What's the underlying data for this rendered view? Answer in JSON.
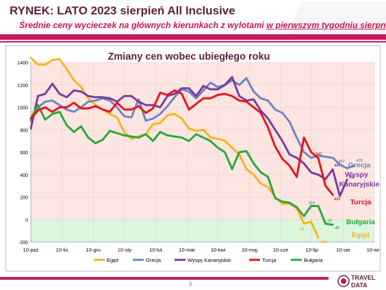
{
  "header": {
    "title": "RYNEK: LATO 2023 sierpień All Inclusive",
    "subtitle_part1": "Średnie ceny wycieczek na głównych kierunkach z wylotami ",
    "subtitle_underlined": "w pierwszym tygodniu sierpnia"
  },
  "footer": {
    "page_number": "9",
    "logo_text_top": "TRAVEL",
    "logo_text_bottom": "DATA"
  },
  "colors": {
    "Egipt": "#f5b51e",
    "Grecja": "#6b86bf",
    "Wyspy Kanaryjskie": "#7a3b9c",
    "Turcja": "#e8141e",
    "Bułgaria": "#2aa83a",
    "positive_bg": "#fde5e2",
    "negative_bg": "#dcf5dd",
    "title_color": "#5f1e3c",
    "accent": "#c8175d"
  },
  "chart_data": {
    "type": "line",
    "title": "Zmiany cen wobec ubiegłego roku",
    "xlabel": "",
    "ylabel": "",
    "ylim": [
      -200,
      1400
    ],
    "yticks": [
      -200,
      0,
      200,
      400,
      600,
      800,
      1000,
      1200,
      1400
    ],
    "x_tick_labels": [
      "10-paź",
      "10-lis",
      "10-gru",
      "10-sty",
      "10-lut",
      "10-mar",
      "10-kwi",
      "10-maj",
      "10-cze",
      "10-lip",
      "10-sie",
      "10-wrz"
    ],
    "grid": true,
    "legend_position": "bottom",
    "series": [
      {
        "name": "Egipt",
        "values": [
          1440,
          1380,
          1380,
          1420,
          1430,
          1340,
          1240,
          1180,
          1080,
          1020,
          980,
          940,
          910,
          780,
          720,
          740,
          760,
          850,
          860,
          930,
          940,
          900,
          810,
          790,
          800,
          730,
          720,
          700,
          640,
          580,
          450,
          400,
          320,
          290,
          200,
          140,
          140,
          100,
          -35,
          -20,
          -161
        ]
      },
      {
        "name": "Grecja",
        "values": [
          880,
          1000,
          1050,
          1060,
          1020,
          980,
          960,
          1000,
          1050,
          1060,
          1080,
          1060,
          1000,
          920,
          910,
          1070,
          880,
          900,
          940,
          1010,
          1090,
          1160,
          1140,
          1080,
          1150,
          1220,
          1180,
          1200,
          1240,
          1200,
          1260,
          1140,
          1080,
          1060,
          980,
          950,
          870,
          730,
          600,
          550,
          570,
          560,
          550,
          490,
          457,
          479
        ]
      },
      {
        "name": "Wyspy Kanaryjskie",
        "values": [
          810,
          1100,
          1120,
          1210,
          1120,
          1090,
          1150,
          1140,
          1100,
          1090,
          1090,
          1080,
          1050,
          1100,
          1100,
          1050,
          1020,
          1020,
          1000,
          1100,
          1120,
          1170,
          1170,
          1100,
          1190,
          1160,
          1160,
          1200,
          1270,
          1100,
          1060,
          1070,
          970,
          900,
          800,
          700,
          580,
          550,
          500,
          420,
          400,
          360,
          447,
          210,
          355
        ]
      },
      {
        "name": "Turcja",
        "values": [
          900,
          970,
          1000,
          960,
          1000,
          1000,
          1040,
          990,
          990,
          1010,
          980,
          960,
          1040,
          980,
          980,
          1010,
          950,
          990,
          1130,
          1110,
          1150,
          1120,
          980,
          1030,
          1080,
          1080,
          1110,
          1120,
          1100,
          1060,
          1050,
          1000,
          950,
          820,
          650,
          540,
          480,
          380,
          730,
          600,
          547,
          300,
          221
        ]
      },
      {
        "name": "Bułgaria",
        "values": [
          900,
          1020,
          890,
          940,
          960,
          840,
          780,
          830,
          730,
          680,
          710,
          790,
          770,
          750,
          740,
          730,
          760,
          700,
          780,
          750,
          740,
          730,
          700,
          760,
          730,
          700,
          640,
          600,
          450,
          600,
          610,
          500,
          420,
          380,
          190,
          160,
          150,
          110,
          30,
          121,
          120,
          -37,
          -47
        ]
      }
    ],
    "end_labels": {
      "Egipt": [
        "-35",
        "-161"
      ],
      "Grecja": [
        "457",
        "479"
      ],
      "Wyspy Kanaryjskie": [
        "447",
        "355"
      ],
      "Turcja": [
        "547",
        "221"
      ],
      "Bułgaria": [
        "121",
        "-37",
        "-47"
      ]
    },
    "annotations": [
      {
        "text": "Grecja",
        "series": "Grecja"
      },
      {
        "text": "Wyspy",
        "series": "Wyspy Kanaryjskie"
      },
      {
        "text": "Kanaryjskie",
        "series": "Wyspy Kanaryjskie"
      },
      {
        "text": "Turcja",
        "series": "Turcja"
      },
      {
        "text": "Bułgaria",
        "series": "Bułgaria"
      },
      {
        "text": "Egipt",
        "series": "Egipt"
      }
    ]
  }
}
